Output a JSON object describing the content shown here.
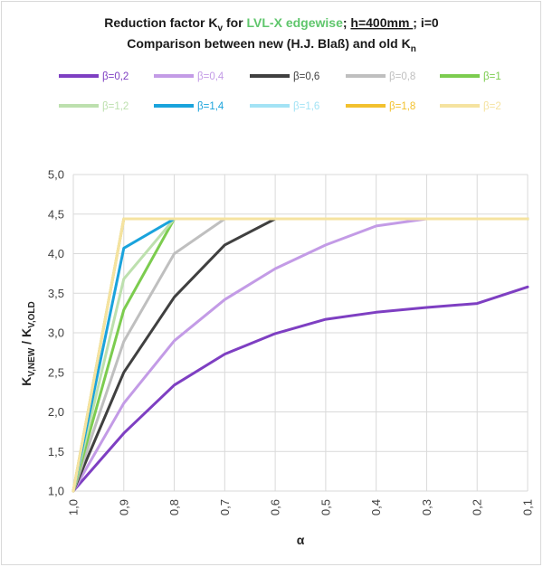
{
  "chart_data": {
    "type": "line",
    "title": {
      "line1": {
        "prefix": "Reduction factor K",
        "prefix_sub": "v",
        "for": " for ",
        "material": "LVL-X edgewise",
        "sep": "; ",
        "h": "h=400mm ",
        "rest": "; i=0"
      },
      "line2": {
        "text": "Comparison between new (H.J. Blaß) and old K",
        "sub": "n"
      }
    },
    "material_color": "#5fc66c",
    "xlabel": "α",
    "ylabel": {
      "k1": "K",
      "sub1": "V,NEW",
      "slash": " / ",
      "k2": "K",
      "sub2": "V,OLD"
    },
    "x": [
      "1,0",
      "0,9",
      "0,8",
      "0,7",
      "0,6",
      "0,5",
      "0,4",
      "0,3",
      "0,2",
      "0,1"
    ],
    "x_values": [
      1.0,
      0.9,
      0.8,
      0.7,
      0.6,
      0.5,
      0.4,
      0.3,
      0.2,
      0.1
    ],
    "xlim": [
      1.0,
      0.1
    ],
    "ylim": [
      1.0,
      5.0
    ],
    "yticks": [
      {
        "v": 1.0,
        "label": "1,0"
      },
      {
        "v": 1.5,
        "label": "1,5"
      },
      {
        "v": 2.0,
        "label": "2,0"
      },
      {
        "v": 2.5,
        "label": "2,5"
      },
      {
        "v": 3.0,
        "label": "3,0"
      },
      {
        "v": 3.5,
        "label": "3,5"
      },
      {
        "v": 4.0,
        "label": "4,0"
      },
      {
        "v": 4.5,
        "label": "4,5"
      },
      {
        "v": 5.0,
        "label": "5,0"
      }
    ],
    "grid": true,
    "legend_position": "top",
    "series": [
      {
        "name": "β=0,2",
        "color": "#7e3fc2",
        "values": [
          1.0,
          1.73,
          2.34,
          2.73,
          2.99,
          3.17,
          3.26,
          3.32,
          3.37,
          3.58
        ]
      },
      {
        "name": "β=0,4",
        "color": "#c39be6",
        "values": [
          1.0,
          2.11,
          2.9,
          3.42,
          3.81,
          4.11,
          4.35,
          4.44,
          4.44,
          4.44
        ]
      },
      {
        "name": "β=0,6",
        "color": "#404040",
        "values": [
          1.0,
          2.5,
          3.45,
          4.11,
          4.44,
          4.44,
          4.44,
          4.44,
          4.44,
          4.44
        ]
      },
      {
        "name": "β=0,8",
        "color": "#bfbfbf",
        "values": [
          1.0,
          2.89,
          4.0,
          4.44,
          4.44,
          4.44,
          4.44,
          4.44,
          4.44,
          4.44
        ]
      },
      {
        "name": "β=1",
        "color": "#7ccc4f",
        "values": [
          1.0,
          3.29,
          4.44,
          4.44,
          4.44,
          4.44,
          4.44,
          4.44,
          4.44,
          4.44
        ]
      },
      {
        "name": "β=1,2",
        "color": "#bde0ae",
        "values": [
          1.0,
          3.68,
          4.44,
          4.44,
          4.44,
          4.44,
          4.44,
          4.44,
          4.44,
          4.44
        ]
      },
      {
        "name": "β=1,4",
        "color": "#1aa3dc",
        "values": [
          1.0,
          4.07,
          4.44,
          4.44,
          4.44,
          4.44,
          4.44,
          4.44,
          4.44,
          4.44
        ]
      },
      {
        "name": "β=1,6",
        "color": "#a3e3f5",
        "values": [
          1.0,
          4.44,
          4.44,
          4.44,
          4.44,
          4.44,
          4.44,
          4.44,
          4.44,
          4.44
        ]
      },
      {
        "name": "β=1,8",
        "color": "#f2c12e",
        "values": [
          1.0,
          4.44,
          4.44,
          4.44,
          4.44,
          4.44,
          4.44,
          4.44,
          4.44,
          4.44
        ]
      },
      {
        "name": "β=2",
        "color": "#f5e3a0",
        "values": [
          1.0,
          4.44,
          4.44,
          4.44,
          4.44,
          4.44,
          4.44,
          4.44,
          4.44,
          4.44
        ]
      }
    ]
  }
}
